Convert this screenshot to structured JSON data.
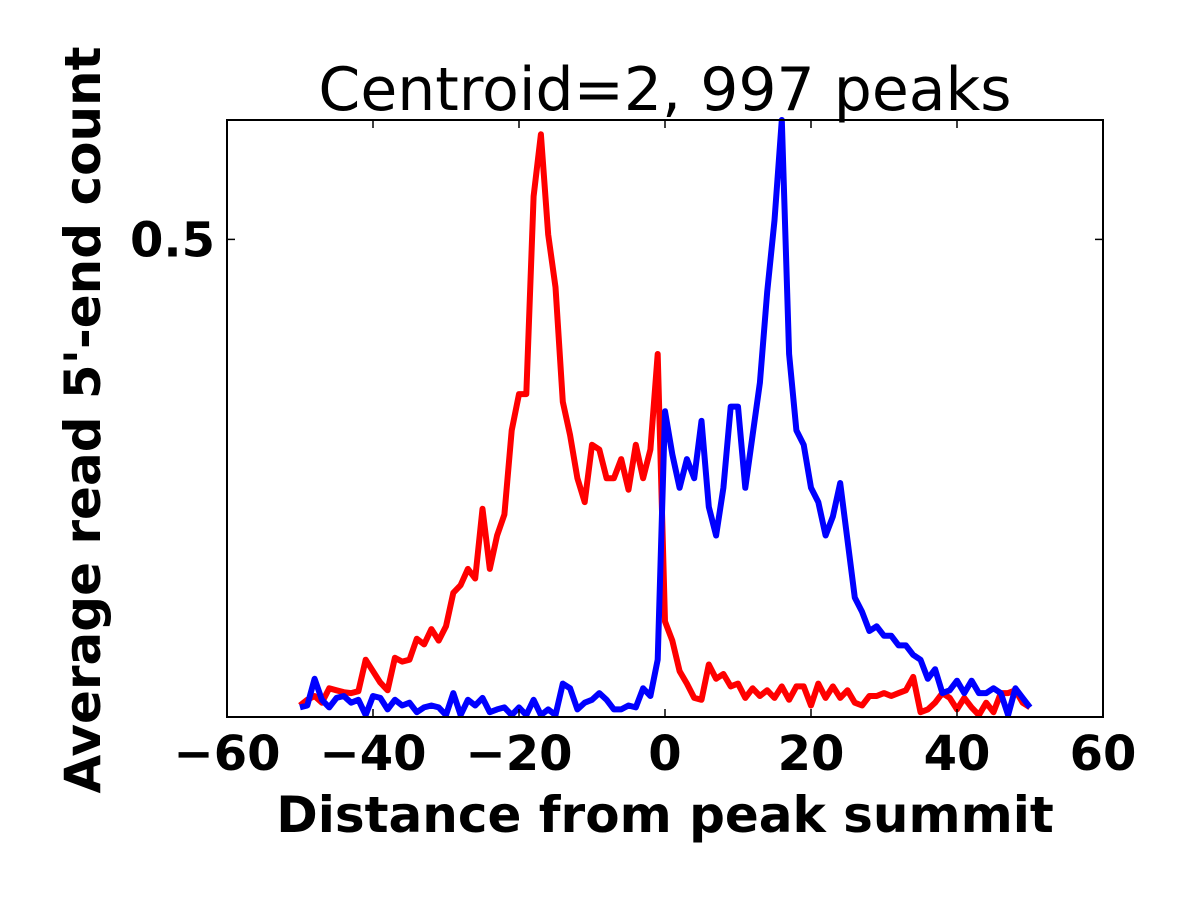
{
  "chart_data": {
    "type": "line",
    "title": "Centroid=2, 997 peaks",
    "xlabel": "Distance from peak summit",
    "ylabel": "Average read 5'-end count",
    "xlim": [
      -60,
      60
    ],
    "ylim": [
      0,
      0.625
    ],
    "xticks": [
      -60,
      -40,
      -20,
      0,
      20,
      40,
      60
    ],
    "xtick_labels": [
      "−60",
      "−40",
      "−20",
      "0",
      "20",
      "40",
      "60"
    ],
    "yticks": [
      0.5
    ],
    "ytick_labels": [
      "0.5"
    ],
    "grid": false,
    "series": [
      {
        "name": "red",
        "color": "#ff0000",
        "x": [
          -50,
          -49,
          -48,
          -47,
          -46,
          -45,
          -44,
          -43,
          -42,
          -41,
          -40,
          -39,
          -38,
          -37,
          -36,
          -35,
          -34,
          -33,
          -32,
          -31,
          -30,
          -29,
          -28,
          -27,
          -26,
          -25,
          -24,
          -23,
          -22,
          -21,
          -20,
          -19,
          -18,
          -17,
          -16,
          -15,
          -14,
          -13,
          -12,
          -11,
          -10,
          -9,
          -8,
          -7,
          -6,
          -5,
          -4,
          -3,
          -2,
          -1,
          0,
          1,
          2,
          3,
          4,
          5,
          6,
          7,
          8,
          9,
          10,
          11,
          12,
          13,
          14,
          15,
          16,
          17,
          18,
          19,
          20,
          21,
          22,
          23,
          24,
          25,
          26,
          27,
          28,
          29,
          30,
          31,
          32,
          33,
          34,
          35,
          36,
          37,
          38,
          39,
          40,
          41,
          42,
          43,
          44,
          45,
          46,
          47,
          48,
          49,
          50
        ],
        "values": [
          0.012,
          0.018,
          0.022,
          0.015,
          0.03,
          0.028,
          0.026,
          0.025,
          0.027,
          0.06,
          0.048,
          0.036,
          0.028,
          0.062,
          0.058,
          0.06,
          0.082,
          0.076,
          0.092,
          0.08,
          0.095,
          0.13,
          0.138,
          0.155,
          0.145,
          0.218,
          0.155,
          0.19,
          0.212,
          0.3,
          0.338,
          0.338,
          0.545,
          0.61,
          0.505,
          0.45,
          0.33,
          0.295,
          0.25,
          0.225,
          0.285,
          0.28,
          0.25,
          0.25,
          0.27,
          0.238,
          0.285,
          0.25,
          0.28,
          0.38,
          0.1,
          0.08,
          0.048,
          0.035,
          0.02,
          0.018,
          0.055,
          0.04,
          0.045,
          0.032,
          0.035,
          0.02,
          0.03,
          0.022,
          0.028,
          0.02,
          0.032,
          0.018,
          0.032,
          0.032,
          0.012,
          0.035,
          0.02,
          0.032,
          0.02,
          0.028,
          0.015,
          0.012,
          0.022,
          0.022,
          0.025,
          0.022,
          0.025,
          0.028,
          0.042,
          0.005,
          0.008,
          0.015,
          0.025,
          0.02,
          0.008,
          0.02,
          0.01,
          0.002,
          0.015,
          0.005,
          0.025,
          0.025,
          0.028,
          0.015,
          0.01
        ]
      },
      {
        "name": "blue",
        "color": "#0000ff",
        "x": [
          -50,
          -49,
          -48,
          -47,
          -46,
          -45,
          -44,
          -43,
          -42,
          -41,
          -40,
          -39,
          -38,
          -37,
          -36,
          -35,
          -34,
          -33,
          -32,
          -31,
          -30,
          -29,
          -28,
          -27,
          -26,
          -25,
          -24,
          -23,
          -22,
          -21,
          -20,
          -19,
          -18,
          -17,
          -16,
          -15,
          -14,
          -13,
          -12,
          -11,
          -10,
          -9,
          -8,
          -7,
          -6,
          -5,
          -4,
          -3,
          -2,
          -1,
          0,
          1,
          2,
          3,
          4,
          5,
          6,
          7,
          8,
          9,
          10,
          11,
          12,
          13,
          14,
          15,
          16,
          17,
          18,
          19,
          20,
          21,
          22,
          23,
          24,
          25,
          26,
          27,
          28,
          29,
          30,
          31,
          32,
          33,
          34,
          35,
          36,
          37,
          38,
          39,
          40,
          41,
          42,
          43,
          44,
          45,
          46,
          47,
          48,
          49,
          50
        ],
        "values": [
          0.01,
          0.012,
          0.04,
          0.018,
          0.01,
          0.02,
          0.022,
          0.015,
          0.018,
          0.002,
          0.022,
          0.02,
          0.008,
          0.018,
          0.012,
          0.015,
          0.005,
          0.01,
          0.012,
          0.01,
          0.002,
          0.025,
          0.002,
          0.018,
          0.012,
          0.02,
          0.005,
          0.008,
          0.01,
          0.002,
          0.01,
          0.002,
          0.018,
          0.002,
          0.008,
          0.002,
          0.035,
          0.03,
          0.008,
          0.015,
          0.018,
          0.025,
          0.018,
          0.008,
          0.008,
          0.012,
          0.01,
          0.03,
          0.022,
          0.06,
          0.32,
          0.275,
          0.24,
          0.27,
          0.25,
          0.31,
          0.22,
          0.19,
          0.24,
          0.325,
          0.325,
          0.24,
          0.295,
          0.35,
          0.445,
          0.52,
          0.625,
          0.38,
          0.3,
          0.285,
          0.24,
          0.225,
          0.19,
          0.21,
          0.245,
          0.185,
          0.125,
          0.11,
          0.09,
          0.095,
          0.085,
          0.085,
          0.075,
          0.075,
          0.065,
          0.06,
          0.04,
          0.05,
          0.025,
          0.028,
          0.038,
          0.025,
          0.038,
          0.025,
          0.025,
          0.03,
          0.025,
          0.002,
          0.03,
          0.02,
          0.01
        ]
      }
    ]
  }
}
